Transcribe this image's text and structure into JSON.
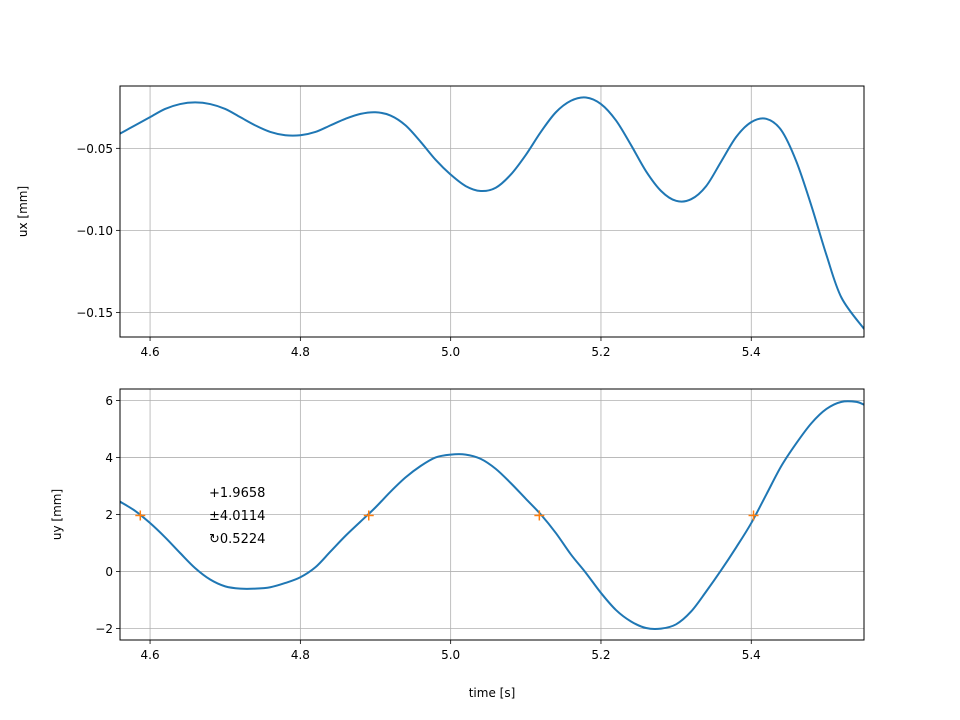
{
  "chart_data": [
    {
      "type": "line",
      "ylabel": "ux [mm]",
      "xlabel": "",
      "xlim": [
        4.56,
        5.55
      ],
      "ylim": [
        -0.165,
        -0.012
      ],
      "xticks": [
        4.6,
        4.8,
        5.0,
        5.2,
        5.4
      ],
      "xtick_labels": [
        "4.6",
        "4.8",
        "5.0",
        "5.2",
        "5.4"
      ],
      "yticks": [
        -0.05,
        -0.1,
        -0.15
      ],
      "ytick_labels": [
        "−0.05",
        "−0.10",
        "−0.15"
      ],
      "grid": true,
      "series": [
        {
          "color": "#1f77b4",
          "x": [
            4.56,
            4.58,
            4.6,
            4.62,
            4.64,
            4.66,
            4.68,
            4.7,
            4.72,
            4.74,
            4.76,
            4.78,
            4.8,
            4.82,
            4.84,
            4.86,
            4.88,
            4.9,
            4.92,
            4.94,
            4.96,
            4.98,
            5.0,
            5.02,
            5.04,
            5.06,
            5.08,
            5.1,
            5.12,
            5.14,
            5.16,
            5.18,
            5.2,
            5.22,
            5.24,
            5.26,
            5.28,
            5.3,
            5.32,
            5.34,
            5.36,
            5.38,
            5.4,
            5.42,
            5.44,
            5.46,
            5.48,
            5.5,
            5.52,
            5.55
          ],
          "y": [
            -0.041,
            -0.036,
            -0.031,
            -0.026,
            -0.023,
            -0.022,
            -0.023,
            -0.026,
            -0.031,
            -0.036,
            -0.04,
            -0.042,
            -0.042,
            -0.04,
            -0.036,
            -0.032,
            -0.029,
            -0.028,
            -0.03,
            -0.036,
            -0.046,
            -0.057,
            -0.066,
            -0.073,
            -0.076,
            -0.074,
            -0.066,
            -0.054,
            -0.04,
            -0.028,
            -0.021,
            -0.019,
            -0.023,
            -0.033,
            -0.048,
            -0.064,
            -0.076,
            -0.082,
            -0.081,
            -0.073,
            -0.058,
            -0.043,
            -0.034,
            -0.032,
            -0.039,
            -0.058,
            -0.085,
            -0.115,
            -0.141,
            -0.16
          ]
        }
      ]
    },
    {
      "type": "line",
      "ylabel": "uy [mm]",
      "xlabel": "time [s]",
      "xlim": [
        4.56,
        5.55
      ],
      "ylim": [
        -2.4,
        6.4
      ],
      "xticks": [
        4.6,
        4.8,
        5.0,
        5.2,
        5.4
      ],
      "xtick_labels": [
        "4.6",
        "4.8",
        "5.0",
        "5.2",
        "5.4"
      ],
      "yticks": [
        6,
        4,
        2,
        0,
        -2
      ],
      "ytick_labels": [
        "6",
        "4",
        "2",
        "0",
        "−2"
      ],
      "grid": true,
      "series": [
        {
          "color": "#1f77b4",
          "x": [
            4.56,
            4.58,
            4.6,
            4.62,
            4.64,
            4.66,
            4.68,
            4.7,
            4.72,
            4.74,
            4.76,
            4.78,
            4.8,
            4.82,
            4.84,
            4.86,
            4.88,
            4.9,
            4.92,
            4.94,
            4.96,
            4.98,
            5.0,
            5.02,
            5.04,
            5.06,
            5.08,
            5.1,
            5.12,
            5.14,
            5.16,
            5.18,
            5.2,
            5.22,
            5.24,
            5.26,
            5.28,
            5.3,
            5.32,
            5.34,
            5.36,
            5.38,
            5.4,
            5.42,
            5.44,
            5.46,
            5.48,
            5.5,
            5.52,
            5.54,
            5.55
          ],
          "y": [
            2.45,
            2.13,
            1.7,
            1.2,
            0.65,
            0.12,
            -0.28,
            -0.52,
            -0.6,
            -0.6,
            -0.55,
            -0.4,
            -0.2,
            0.15,
            0.7,
            1.25,
            1.75,
            2.25,
            2.8,
            3.3,
            3.7,
            4.0,
            4.1,
            4.1,
            3.95,
            3.6,
            3.1,
            2.55,
            2.0,
            1.35,
            0.6,
            -0.05,
            -0.75,
            -1.35,
            -1.75,
            -1.98,
            -2.0,
            -1.85,
            -1.4,
            -0.7,
            0.05,
            0.85,
            1.7,
            2.7,
            3.7,
            4.5,
            5.2,
            5.7,
            5.95,
            5.95,
            5.85
          ]
        },
        {
          "color": "#ff7f0e",
          "marker": "+",
          "x": [
            4.587,
            4.891,
            5.118,
            5.403
          ],
          "y": [
            1.9658,
            1.9658,
            1.9658,
            1.9658
          ]
        }
      ],
      "annotations": [
        "+1.9658",
        "±4.0114",
        "↻0.5224"
      ]
    }
  ]
}
